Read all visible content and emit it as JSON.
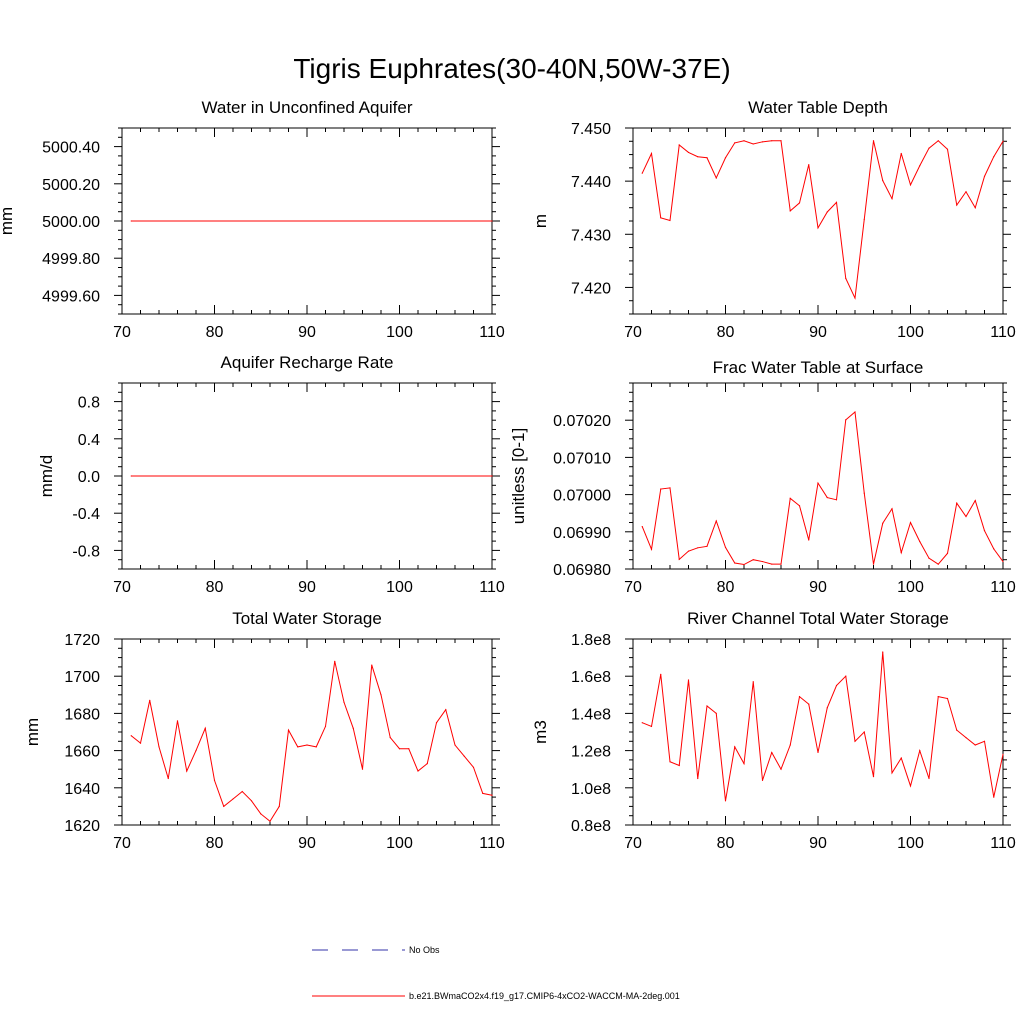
{
  "title": "Tigris Euphrates(30-40N,50W-37E)",
  "colors": {
    "model": "#ff0000",
    "obs": "#3333aa",
    "axis": "#000000"
  },
  "legend": {
    "items": [
      {
        "label": "No Obs",
        "style": "dashed",
        "color": "#3333aa"
      },
      {
        "label": "b.e21.BWmaCO2x4.f19_g17.CMIP6-4xCO2-WACCM-MA-2deg.001",
        "style": "solid",
        "color": "#ff0000"
      }
    ]
  },
  "chart_data": [
    {
      "type": "line",
      "title": "Water in Unconfined Aquifer",
      "xlabel": "",
      "ylabel": "mm",
      "xlim": [
        70,
        110
      ],
      "ylim": [
        4999.5,
        5000.5
      ],
      "xticks": [
        70,
        80,
        90,
        100,
        110
      ],
      "xtick_labels": [
        "70",
        "80",
        "90",
        "100",
        "110"
      ],
      "yticks": [
        4999.6,
        4999.8,
        5000.0,
        5000.2,
        5000.4
      ],
      "ytick_labels": [
        "4999.60",
        "4999.80",
        "5000.00",
        "5000.20",
        "5000.40"
      ],
      "ymticks": [
        4999.5,
        4999.55,
        4999.65,
        4999.7,
        4999.75,
        4999.85,
        4999.9,
        4999.95,
        5000.05,
        5000.1,
        5000.15,
        5000.25,
        5000.3,
        5000.35,
        5000.45,
        5000.5
      ],
      "series": [
        {
          "name": "b.e21.BWmaCO2x4.f19_g17.CMIP6-4xCO2-WACCM-MA-2deg.001",
          "x": [
            71,
            110
          ],
          "y": [
            5000.0,
            5000.0
          ]
        }
      ]
    },
    {
      "type": "line",
      "title": "Water Table Depth",
      "xlabel": "",
      "ylabel": "m",
      "xlim": [
        70,
        110
      ],
      "ylim": [
        7.415,
        7.45
      ],
      "xticks": [
        70,
        80,
        90,
        100,
        110
      ],
      "xtick_labels": [
        "70",
        "80",
        "90",
        "100",
        "110"
      ],
      "yticks": [
        7.42,
        7.43,
        7.44,
        7.45
      ],
      "ytick_labels": [
        "7.420",
        "7.430",
        "7.440",
        "7.450"
      ],
      "ymticks": [
        7.415,
        7.4175,
        7.4225,
        7.425,
        7.4275,
        7.4325,
        7.435,
        7.4375,
        7.4425,
        7.445,
        7.4475
      ],
      "series": [
        {
          "name": "b.e21.BWmaCO2x4.f19_g17.CMIP6-4xCO2-WACCM-MA-2deg.001",
          "x": [
            71,
            72,
            73,
            74,
            75,
            76,
            77,
            78,
            79,
            80,
            81,
            82,
            83,
            84,
            85,
            86,
            87,
            88,
            89,
            90,
            91,
            92,
            93,
            94,
            95,
            96,
            97,
            98,
            99,
            100,
            101,
            102,
            103,
            104,
            105,
            106,
            107,
            108,
            109,
            110
          ],
          "y": [
            7.4415,
            7.4452,
            7.4331,
            7.4326,
            7.4468,
            7.4454,
            7.4446,
            7.4444,
            7.4406,
            7.4444,
            7.4472,
            7.4476,
            7.447,
            7.4474,
            7.4476,
            7.4476,
            7.4344,
            7.4359,
            7.4431,
            7.4312,
            7.4342,
            7.436,
            7.4217,
            7.418,
            7.4328,
            7.4476,
            7.4401,
            7.4367,
            7.4452,
            7.4393,
            7.4429,
            7.4462,
            7.4476,
            7.446,
            7.4355,
            7.438,
            7.435,
            7.4409,
            7.4446,
            7.4475
          ]
        }
      ]
    },
    {
      "type": "line",
      "title": "Aquifer Recharge Rate",
      "xlabel": "",
      "ylabel": "mm/d",
      "xlim": [
        70,
        110
      ],
      "ylim": [
        -1.0,
        1.0
      ],
      "xticks": [
        70,
        80,
        90,
        100,
        110
      ],
      "xtick_labels": [
        "70",
        "80",
        "90",
        "100",
        "110"
      ],
      "yticks": [
        -0.8,
        -0.4,
        0.0,
        0.4,
        0.8
      ],
      "ytick_labels": [
        "-0.8",
        "-0.4",
        "0.0",
        "0.4",
        "0.8"
      ],
      "ymticks": [
        -1.0,
        -0.9,
        -0.7,
        -0.6,
        -0.5,
        -0.3,
        -0.2,
        -0.1,
        0.1,
        0.2,
        0.3,
        0.5,
        0.6,
        0.7,
        0.9,
        1.0
      ],
      "series": [
        {
          "name": "b.e21.BWmaCO2x4.f19_g17.CMIP6-4xCO2-WACCM-MA-2deg.001",
          "x": [
            71,
            110
          ],
          "y": [
            0.0,
            0.0
          ]
        }
      ]
    },
    {
      "type": "line",
      "title": "Frac Water Table at Surface",
      "xlabel": "",
      "ylabel": "unitless [0-1]",
      "xlim": [
        70,
        110
      ],
      "ylim": [
        0.0698,
        0.0703
      ],
      "xticks": [
        70,
        80,
        90,
        100,
        110
      ],
      "xtick_labels": [
        "70",
        "80",
        "90",
        "100",
        "110"
      ],
      "yticks": [
        0.0698,
        0.0699,
        0.07,
        0.0701,
        0.0702
      ],
      "ytick_labels": [
        "0.06980",
        "0.06990",
        "0.07000",
        "0.07010",
        "0.07020"
      ],
      "ymticks": [
        0.069825,
        0.06985,
        0.069875,
        0.069925,
        0.06995,
        0.069975,
        0.070025,
        0.07005,
        0.070075,
        0.070125,
        0.07015,
        0.070175,
        0.070225,
        0.07025,
        0.070275,
        0.0703
      ],
      "series": [
        {
          "name": "b.e21.BWmaCO2x4.f19_g17.CMIP6-4xCO2-WACCM-MA-2deg.001",
          "x": [
            71,
            72,
            73,
            74,
            75,
            76,
            77,
            78,
            79,
            80,
            81,
            82,
            83,
            84,
            85,
            86,
            87,
            88,
            89,
            90,
            91,
            92,
            93,
            94,
            95,
            96,
            97,
            98,
            99,
            100,
            101,
            102,
            103,
            104,
            105,
            106,
            107,
            108,
            109,
            110
          ],
          "y": [
            0.069914,
            0.069853,
            0.070015,
            0.070018,
            0.069826,
            0.069848,
            0.069857,
            0.069861,
            0.069929,
            0.069858,
            0.069816,
            0.069812,
            0.069825,
            0.06982,
            0.069813,
            0.069813,
            0.06999,
            0.06997,
            0.069878,
            0.070031,
            0.069992,
            0.069986,
            0.070201,
            0.070222,
            0.070004,
            0.069813,
            0.069923,
            0.069962,
            0.069844,
            0.069925,
            0.069874,
            0.069829,
            0.069813,
            0.069842,
            0.069977,
            0.069941,
            0.069984,
            0.069903,
            0.069854,
            0.06982
          ]
        }
      ]
    },
    {
      "type": "line",
      "title": "Total Water Storage",
      "xlabel": "",
      "ylabel": "mm",
      "xlim": [
        70,
        110
      ],
      "ylim": [
        1620,
        1720
      ],
      "xticks": [
        70,
        80,
        90,
        100,
        110
      ],
      "xtick_labels": [
        "70",
        "80",
        "90",
        "100",
        "110"
      ],
      "yticks": [
        1620,
        1640,
        1660,
        1680,
        1700,
        1720
      ],
      "ytick_labels": [
        "1620",
        "1640",
        "1660",
        "1680",
        "1700",
        "1720"
      ],
      "ymticks": [
        1625,
        1630,
        1635,
        1645,
        1650,
        1655,
        1665,
        1670,
        1675,
        1685,
        1690,
        1695,
        1705,
        1710,
        1715
      ],
      "series": [
        {
          "name": "b.e21.BWmaCO2x4.f19_g17.CMIP6-4xCO2-WACCM-MA-2deg.001",
          "x": [
            71,
            72,
            73,
            74,
            75,
            76,
            77,
            78,
            79,
            80,
            81,
            82,
            83,
            84,
            85,
            86,
            87,
            88,
            89,
            90,
            91,
            92,
            93,
            94,
            95,
            96,
            97,
            98,
            99,
            100,
            101,
            102,
            103,
            104,
            105,
            106,
            107,
            108,
            109,
            110
          ],
          "y": [
            1668,
            1664,
            1687,
            1662,
            1645,
            1676,
            1649,
            1660,
            1672,
            1644,
            1630,
            1634,
            1638,
            1633,
            1626,
            1622,
            1630,
            1671,
            1662,
            1663,
            1662,
            1673,
            1708,
            1686,
            1672,
            1650,
            1706,
            1690,
            1667,
            1661,
            1661,
            1649,
            1653,
            1675,
            1682,
            1663,
            1657,
            1651,
            1637,
            1636
          ]
        }
      ]
    },
    {
      "type": "line",
      "title": "River Channel Total Water Storage",
      "xlabel": "",
      "ylabel": "m3",
      "xlim": [
        70,
        110
      ],
      "ylim": [
        80000000,
        180000000
      ],
      "xticks": [
        70,
        80,
        90,
        100,
        110
      ],
      "xtick_labels": [
        "70",
        "80",
        "90",
        "100",
        "110"
      ],
      "yticks": [
        80000000,
        100000000,
        120000000,
        140000000,
        160000000,
        180000000
      ],
      "ytick_labels": [
        "0.8e8",
        "1.0e8",
        "1.2e8",
        "1.4e8",
        "1.6e8",
        "1.8e8"
      ],
      "ymticks": [
        85000000,
        90000000,
        95000000,
        105000000,
        110000000,
        115000000,
        125000000,
        130000000,
        135000000,
        145000000,
        150000000,
        155000000,
        165000000,
        170000000,
        175000000
      ],
      "series": [
        {
          "name": "b.e21.BWmaCO2x4.f19_g17.CMIP6-4xCO2-WACCM-MA-2deg.001",
          "x": [
            71,
            72,
            73,
            74,
            75,
            76,
            77,
            78,
            79,
            80,
            81,
            82,
            83,
            84,
            85,
            86,
            87,
            88,
            89,
            90,
            91,
            92,
            93,
            94,
            95,
            96,
            97,
            98,
            99,
            100,
            101,
            102,
            103,
            104,
            105,
            106,
            107,
            108,
            109,
            110
          ],
          "y": [
            135000000,
            133000000,
            161000000,
            114000000,
            112000000,
            158000000,
            105000000,
            144000000,
            140000000,
            93000000,
            122000000,
            113000000,
            157000000,
            104000000,
            119000000,
            110000000,
            123000000,
            149000000,
            145000000,
            119000000,
            143000000,
            155000000,
            160000000,
            125000000,
            130000000,
            106000000,
            173000000,
            108000000,
            116000000,
            101000000,
            120000000,
            105000000,
            149000000,
            148000000,
            131000000,
            127000000,
            123000000,
            125000000,
            95000000,
            118000000
          ]
        }
      ]
    }
  ]
}
